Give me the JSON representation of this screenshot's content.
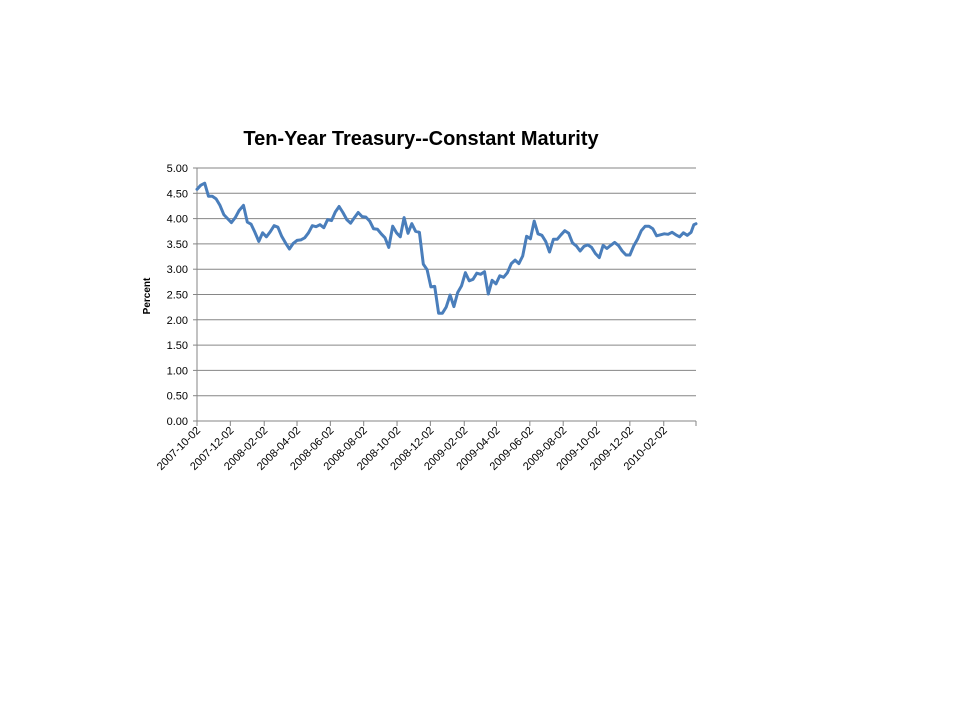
{
  "chart_data": {
    "type": "line",
    "title": "Ten-Year Treasury--Constant Maturity",
    "xlabel": "",
    "ylabel": "Percent",
    "ylim": [
      0,
      5
    ],
    "yticks": [
      "0.00",
      "0.50",
      "1.00",
      "1.50",
      "2.00",
      "2.50",
      "3.00",
      "3.50",
      "4.00",
      "4.50",
      "5.00"
    ],
    "xlim": [
      "2007-10-02",
      "2010-04-02"
    ],
    "xticks": [
      "2007-10-02",
      "2007-12-02",
      "2008-02-02",
      "2008-04-02",
      "2008-06-02",
      "2008-08-02",
      "2008-10-02",
      "2008-12-02",
      "2009-02-02",
      "2009-04-02",
      "2009-06-02",
      "2009-08-02",
      "2009-10-02",
      "2009-12-02",
      "2010-02-02"
    ],
    "grid": true,
    "legend": "none",
    "series_color": "#4a7ebb",
    "series": [
      {
        "name": "Ten-Year Treasury",
        "points": [
          [
            "2007-10-02",
            4.58
          ],
          [
            "2007-10-09",
            4.66
          ],
          [
            "2007-10-16",
            4.7
          ],
          [
            "2007-10-23",
            4.44
          ],
          [
            "2007-10-30",
            4.44
          ],
          [
            "2007-11-06",
            4.39
          ],
          [
            "2007-11-13",
            4.26
          ],
          [
            "2007-11-20",
            4.08
          ],
          [
            "2007-11-27",
            4.0
          ],
          [
            "2007-12-04",
            3.92
          ],
          [
            "2007-12-11",
            4.02
          ],
          [
            "2007-12-18",
            4.16
          ],
          [
            "2007-12-26",
            4.26
          ],
          [
            "2008-01-02",
            3.93
          ],
          [
            "2008-01-09",
            3.89
          ],
          [
            "2008-01-16",
            3.73
          ],
          [
            "2008-01-23",
            3.55
          ],
          [
            "2008-01-30",
            3.72
          ],
          [
            "2008-02-06",
            3.64
          ],
          [
            "2008-02-13",
            3.74
          ],
          [
            "2008-02-20",
            3.86
          ],
          [
            "2008-02-27",
            3.83
          ],
          [
            "2008-03-05",
            3.65
          ],
          [
            "2008-03-12",
            3.52
          ],
          [
            "2008-03-19",
            3.4
          ],
          [
            "2008-03-26",
            3.51
          ],
          [
            "2008-04-02",
            3.57
          ],
          [
            "2008-04-09",
            3.58
          ],
          [
            "2008-04-16",
            3.62
          ],
          [
            "2008-04-23",
            3.72
          ],
          [
            "2008-04-30",
            3.86
          ],
          [
            "2008-05-07",
            3.84
          ],
          [
            "2008-05-14",
            3.88
          ],
          [
            "2008-05-21",
            3.82
          ],
          [
            "2008-05-28",
            3.98
          ],
          [
            "2008-06-04",
            3.96
          ],
          [
            "2008-06-11",
            4.13
          ],
          [
            "2008-06-18",
            4.24
          ],
          [
            "2008-06-25",
            4.12
          ],
          [
            "2008-07-02",
            3.98
          ],
          [
            "2008-07-09",
            3.91
          ],
          [
            "2008-07-16",
            4.02
          ],
          [
            "2008-07-23",
            4.12
          ],
          [
            "2008-07-30",
            4.04
          ],
          [
            "2008-08-06",
            4.03
          ],
          [
            "2008-08-13",
            3.95
          ],
          [
            "2008-08-20",
            3.8
          ],
          [
            "2008-08-27",
            3.79
          ],
          [
            "2008-09-03",
            3.7
          ],
          [
            "2008-09-10",
            3.62
          ],
          [
            "2008-09-17",
            3.43
          ],
          [
            "2008-09-24",
            3.85
          ],
          [
            "2008-10-01",
            3.72
          ],
          [
            "2008-10-08",
            3.64
          ],
          [
            "2008-10-15",
            4.02
          ],
          [
            "2008-10-22",
            3.71
          ],
          [
            "2008-10-29",
            3.9
          ],
          [
            "2008-11-05",
            3.75
          ],
          [
            "2008-11-12",
            3.73
          ],
          [
            "2008-11-19",
            3.1
          ],
          [
            "2008-11-26",
            2.99
          ],
          [
            "2008-12-03",
            2.65
          ],
          [
            "2008-12-10",
            2.66
          ],
          [
            "2008-12-17",
            2.13
          ],
          [
            "2008-12-24",
            2.13
          ],
          [
            "2008-12-31",
            2.25
          ],
          [
            "2009-01-07",
            2.49
          ],
          [
            "2009-01-14",
            2.26
          ],
          [
            "2009-01-21",
            2.54
          ],
          [
            "2009-01-28",
            2.67
          ],
          [
            "2009-02-04",
            2.93
          ],
          [
            "2009-02-11",
            2.77
          ],
          [
            "2009-02-18",
            2.8
          ],
          [
            "2009-02-25",
            2.92
          ],
          [
            "2009-03-04",
            2.9
          ],
          [
            "2009-03-11",
            2.95
          ],
          [
            "2009-03-18",
            2.51
          ],
          [
            "2009-03-25",
            2.78
          ],
          [
            "2009-04-01",
            2.71
          ],
          [
            "2009-04-08",
            2.87
          ],
          [
            "2009-04-15",
            2.84
          ],
          [
            "2009-04-22",
            2.93
          ],
          [
            "2009-04-29",
            3.11
          ],
          [
            "2009-05-06",
            3.18
          ],
          [
            "2009-05-13",
            3.11
          ],
          [
            "2009-05-20",
            3.26
          ],
          [
            "2009-05-27",
            3.65
          ],
          [
            "2009-06-03",
            3.6
          ],
          [
            "2009-06-10",
            3.95
          ],
          [
            "2009-06-17",
            3.7
          ],
          [
            "2009-06-24",
            3.67
          ],
          [
            "2009-07-01",
            3.55
          ],
          [
            "2009-07-08",
            3.34
          ],
          [
            "2009-07-15",
            3.59
          ],
          [
            "2009-07-22",
            3.59
          ],
          [
            "2009-07-29",
            3.68
          ],
          [
            "2009-08-05",
            3.76
          ],
          [
            "2009-08-12",
            3.71
          ],
          [
            "2009-08-19",
            3.52
          ],
          [
            "2009-08-26",
            3.46
          ],
          [
            "2009-09-02",
            3.36
          ],
          [
            "2009-09-09",
            3.45
          ],
          [
            "2009-09-16",
            3.48
          ],
          [
            "2009-09-23",
            3.43
          ],
          [
            "2009-09-30",
            3.31
          ],
          [
            "2009-10-07",
            3.23
          ],
          [
            "2009-10-14",
            3.47
          ],
          [
            "2009-10-21",
            3.41
          ],
          [
            "2009-10-28",
            3.47
          ],
          [
            "2009-11-04",
            3.53
          ],
          [
            "2009-11-11",
            3.47
          ],
          [
            "2009-11-18",
            3.36
          ],
          [
            "2009-11-25",
            3.28
          ],
          [
            "2009-12-02",
            3.28
          ],
          [
            "2009-12-09",
            3.46
          ],
          [
            "2009-12-16",
            3.59
          ],
          [
            "2009-12-23",
            3.76
          ],
          [
            "2009-12-30",
            3.85
          ],
          [
            "2010-01-06",
            3.85
          ],
          [
            "2010-01-13",
            3.8
          ],
          [
            "2010-01-20",
            3.66
          ],
          [
            "2010-01-27",
            3.68
          ],
          [
            "2010-02-03",
            3.7
          ],
          [
            "2010-02-10",
            3.69
          ],
          [
            "2010-02-17",
            3.73
          ],
          [
            "2010-02-24",
            3.68
          ],
          [
            "2010-03-03",
            3.64
          ],
          [
            "2010-03-10",
            3.72
          ],
          [
            "2010-03-17",
            3.67
          ],
          [
            "2010-03-24",
            3.73
          ],
          [
            "2010-03-29",
            3.88
          ],
          [
            "2010-04-02",
            3.9
          ]
        ]
      }
    ]
  }
}
